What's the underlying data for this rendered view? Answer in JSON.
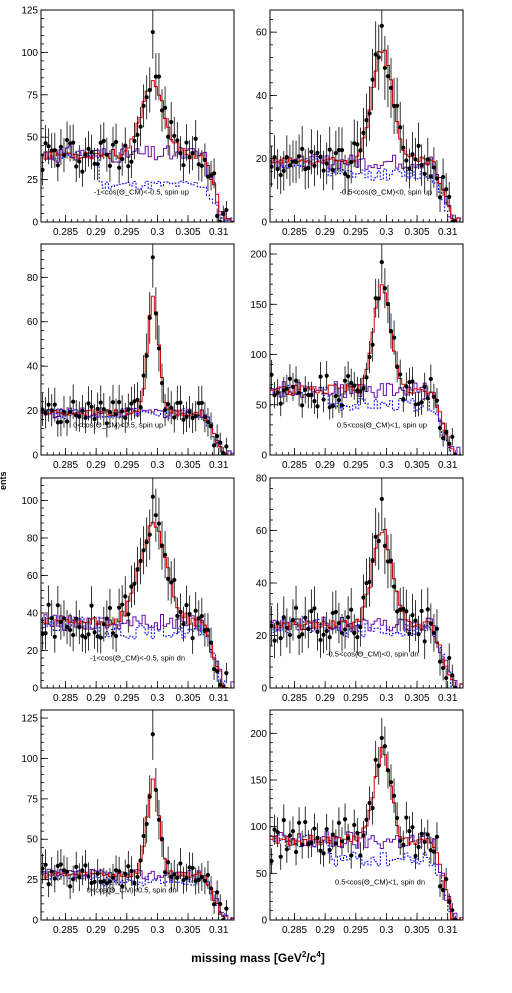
{
  "figure": {
    "xlabel": "missing mass [GeV²/c⁴]",
    "xlabel_parts": {
      "main": "missing mass ",
      "open": "[GeV",
      "sup1": "2",
      "mid": "/c",
      "sup2": "4",
      "close": "]"
    },
    "ylabel_fragment": "ents"
  },
  "colors": {
    "data_points": "#000000",
    "fit_total": "#dd0000",
    "simulation": "#6a0dad",
    "background": "#0000ff",
    "frame": "#000000"
  },
  "chart_data": [
    {
      "type": "scatter",
      "label": "-1<cos(Θ_CM)<-0.5, spin up",
      "xlim": [
        0.281,
        0.3125
      ],
      "ylim": [
        0,
        125
      ],
      "xticks": [
        0.285,
        0.29,
        0.295,
        0.3,
        0.305,
        0.31
      ],
      "yticks": [
        0,
        25,
        50,
        75,
        100,
        125
      ],
      "peak_height": 82,
      "bg_level": 40,
      "bg_dashed": 22,
      "peak_sigma": 0.0018,
      "point_peak": 112
    },
    {
      "type": "scatter",
      "label": "-0.5<cos(Θ_CM)<0, spin up",
      "xlim": [
        0.281,
        0.3125
      ],
      "ylim": [
        0,
        67
      ],
      "xticks": [
        0.285,
        0.29,
        0.295,
        0.3,
        0.305,
        0.31
      ],
      "yticks": [
        0,
        20,
        40,
        60
      ],
      "peak_height": 55,
      "bg_level": 19,
      "bg_dashed": 15,
      "peak_sigma": 0.0017,
      "point_peak": 62
    },
    {
      "type": "scatter",
      "label": "0<cos(Θ_CM)<0.5, spin up",
      "xlim": [
        0.281,
        0.3125
      ],
      "ylim": [
        0,
        95
      ],
      "xticks": [
        0.285,
        0.29,
        0.295,
        0.3,
        0.305,
        0.31
      ],
      "yticks": [
        0,
        20,
        40,
        60,
        80
      ],
      "peak_height": 72,
      "bg_level": 19,
      "bg_dashed": 19,
      "peak_sigma": 0.0009,
      "point_peak": 89
    },
    {
      "type": "scatter",
      "label": "0.5<cos(Θ_CM)<1, spin up",
      "xlim": [
        0.281,
        0.3125
      ],
      "ylim": [
        0,
        210
      ],
      "xticks": [
        0.285,
        0.29,
        0.295,
        0.3,
        0.305,
        0.31
      ],
      "yticks": [
        0,
        50,
        100,
        150,
        200
      ],
      "peak_height": 168,
      "bg_level": 65,
      "bg_dashed": 50,
      "peak_sigma": 0.0014,
      "point_peak": 192
    },
    {
      "type": "scatter",
      "label": "-1<cos(Θ_CM)<-0.5, spin dn",
      "xlim": [
        0.281,
        0.3125
      ],
      "ylim": [
        0,
        112
      ],
      "xticks": [
        0.285,
        0.29,
        0.295,
        0.3,
        0.305,
        0.31
      ],
      "yticks": [
        0,
        20,
        40,
        60,
        80,
        100
      ],
      "peak_height": 86,
      "bg_level": 35,
      "bg_dashed": 30,
      "peak_sigma": 0.0022,
      "point_peak": 102
    },
    {
      "type": "scatter",
      "label": "-0.5<cos(Θ_CM)<0, spin dn",
      "xlim": [
        0.281,
        0.3125
      ],
      "ylim": [
        0,
        80
      ],
      "xticks": [
        0.285,
        0.29,
        0.295,
        0.3,
        0.305,
        0.31
      ],
      "yticks": [
        0,
        20,
        40,
        60,
        80
      ],
      "peak_height": 60,
      "bg_level": 24,
      "bg_dashed": 22,
      "peak_sigma": 0.0016,
      "point_peak": 72
    },
    {
      "type": "scatter",
      "label": "0<cos(Θ_CM)<0.5, spin dn",
      "xlim": [
        0.281,
        0.3125
      ],
      "ylim": [
        0,
        130
      ],
      "xticks": [
        0.285,
        0.29,
        0.295,
        0.3,
        0.305,
        0.31
      ],
      "yticks": [
        0,
        25,
        50,
        75,
        100,
        125
      ],
      "peak_height": 87,
      "bg_level": 28,
      "bg_dashed": 24,
      "peak_sigma": 0.001,
      "point_peak": 115
    },
    {
      "type": "scatter",
      "label": "0.5<cos(Θ_CM)<1, spin dn",
      "xlim": [
        0.281,
        0.3125
      ],
      "ylim": [
        0,
        225
      ],
      "xticks": [
        0.285,
        0.29,
        0.295,
        0.3,
        0.305,
        0.31
      ],
      "yticks": [
        0,
        50,
        100,
        150,
        200
      ],
      "peak_height": 180,
      "bg_level": 85,
      "bg_dashed": 65,
      "peak_sigma": 0.0014,
      "point_peak": 195
    }
  ]
}
